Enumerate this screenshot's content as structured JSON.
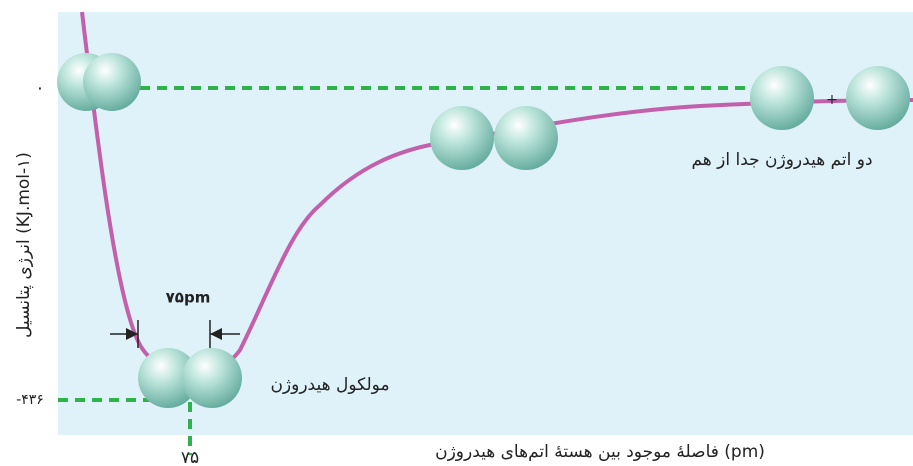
{
  "axes": {
    "y_label": "انرژی پتانسیل (KJ.mol-۱)",
    "x_label": "فاصلهٔ موجود بین هستهٔ اتم‌های هیدروژن (pm)",
    "y_ticks": [
      "۰",
      "-۴۳۶"
    ],
    "x_ticks": [
      "۷۵"
    ]
  },
  "annotations": {
    "bond_length": "۷۵pm",
    "molecule": "مولکول هیدروژن",
    "separated": "دو اتم هیدروژن جدا از هم",
    "plus": "+"
  }
}
